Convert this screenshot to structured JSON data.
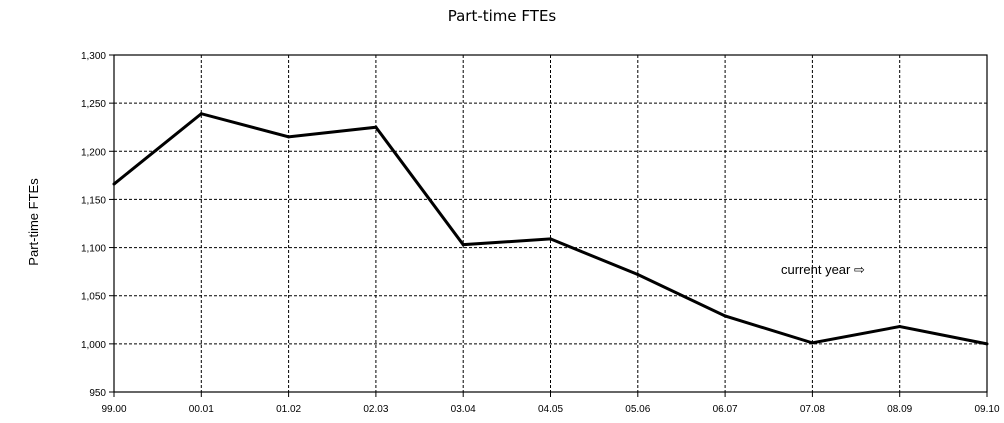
{
  "chart_data": {
    "type": "line",
    "title": "Part-time FTEs",
    "xlabel": "",
    "ylabel": "Part-time FTEs",
    "categories": [
      "99.00",
      "00.01",
      "01.02",
      "02.03",
      "03.04",
      "04.05",
      "05.06",
      "06.07",
      "07.08",
      "08.09",
      "09.10"
    ],
    "y_tick_labels": [
      "950",
      "1,000",
      "1,050",
      "1,100",
      "1,150",
      "1,200",
      "1,250",
      "1,300"
    ],
    "y_ticks": [
      950,
      1000,
      1050,
      1100,
      1150,
      1200,
      1250,
      1300
    ],
    "ylim": [
      950,
      1300
    ],
    "grid": true,
    "series": [
      {
        "values": [
          1166,
          1239,
          1215,
          1225,
          1103,
          1109,
          1072,
          1029,
          1001,
          1018,
          1000
        ],
        "color": "#000000"
      }
    ],
    "annotation": "current year ⇨"
  }
}
